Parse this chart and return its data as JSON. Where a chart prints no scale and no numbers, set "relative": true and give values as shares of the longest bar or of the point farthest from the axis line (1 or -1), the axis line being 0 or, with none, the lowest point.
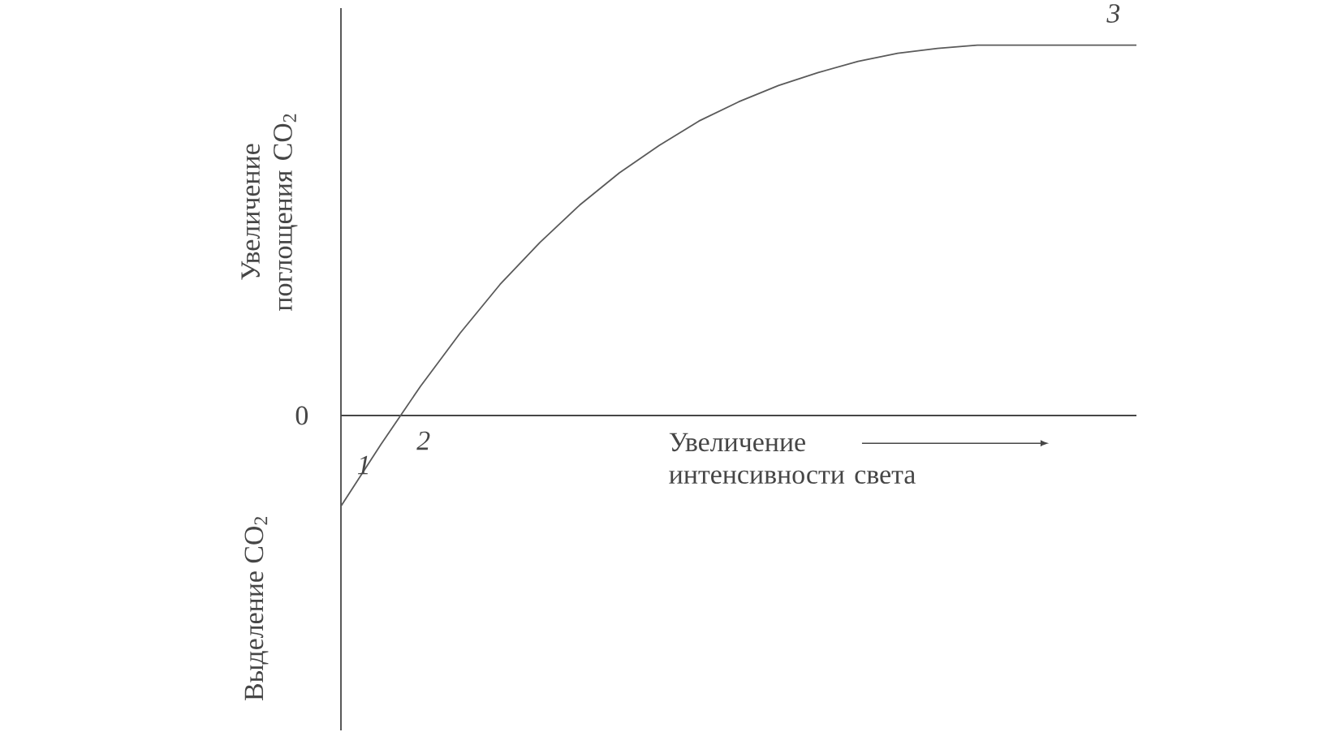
{
  "chart_data": {
    "type": "line",
    "relative": true,
    "xlabel": "Увеличение интенсивности света",
    "ylabel": "Увеличение поглощения CO$_{2}$",
    "categories": [
      null,
      null,
      null,
      null,
      null,
      null,
      null,
      null,
      null,
      null,
      null,
      null,
      null,
      null,
      null,
      null,
      null,
      null,
      null,
      null,
      null
    ],
    "series": [
      {
        "color": "#5a5a5a",
        "values": [
          -0.245,
          -0.079,
          0.079,
          0.223,
          0.354,
          0.467,
          0.568,
          0.655,
          0.729,
          0.795,
          0.847,
          0.891,
          0.926,
          0.956,
          0.978,
          0.991,
          1,
          1,
          1,
          1,
          1
        ]
      }
    ],
    "annotations": [
      "0",
      "Выделение CO$_{2}$",
      "1",
      "2",
      "3"
    ]
  }
}
